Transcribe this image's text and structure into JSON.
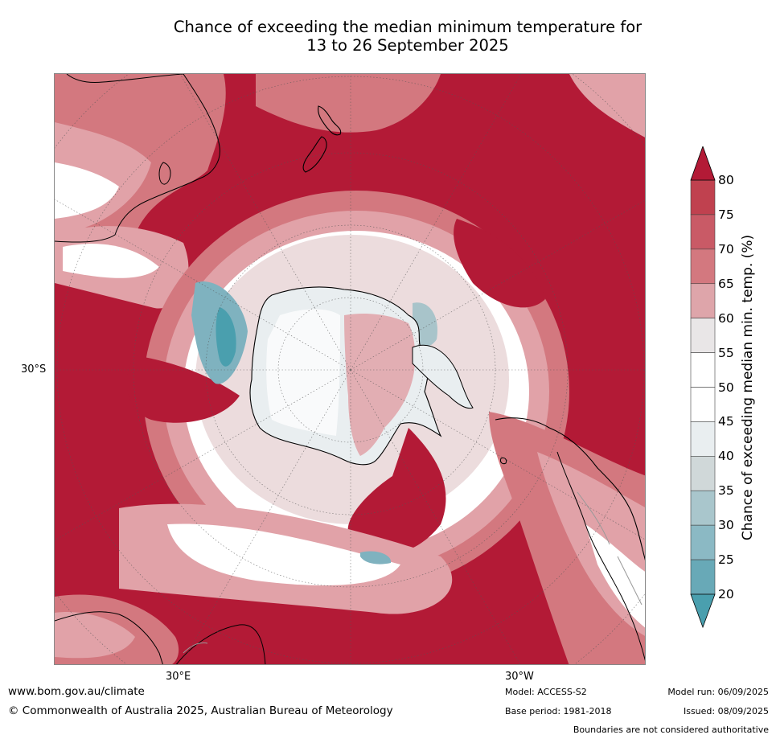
{
  "title_line1": "Chance of exceeding the median minimum temperature for",
  "title_line2": "13 to 26 September 2025",
  "map": {
    "lat_label": "30°S",
    "lon_label_east": "30°E",
    "lon_label_west": "30°W",
    "colors": {
      "very_high": "#b31a36",
      "high_75": "#c0414f",
      "high_70": "#d06873",
      "high_65": "#e1a2a8",
      "near_60": "#ecdcdd",
      "neutral": "#ffffff",
      "low_45": "#e9eef0",
      "low_40": "#d3dbdd",
      "low_30": "#a8c4ca",
      "low_25": "#7fb2bf",
      "very_low": "#4a9fae"
    }
  },
  "colorbar": {
    "ticks": [
      "80",
      "75",
      "70",
      "65",
      "60",
      "55",
      "50",
      "45",
      "40",
      "35",
      "30",
      "25",
      "20"
    ],
    "label": "Chance of exceeding median min. temp. (%)",
    "band_colors": [
      "#c0414f",
      "#c95a66",
      "#d3787f",
      "#dea5aa",
      "#e9e6e7",
      "#ffffff",
      "#ffffff",
      "#e9eef0",
      "#d0d8d9",
      "#a9c6cc",
      "#8bb9c4",
      "#68a9b7"
    ],
    "over_color": "#b31a36",
    "under_color": "#4a9fae"
  },
  "footer": {
    "url": "www.bom.gov.au/climate",
    "copyright": "© Commonwealth of Australia 2025, Australian Bureau of Meteorology",
    "model": "Model: ACCESS-S2",
    "base_period": "Base period: 1981-2018",
    "model_run": "Model run: 06/09/2025",
    "issued": "Issued: 08/09/2025",
    "disclaimer": "Boundaries are not considered authoritative"
  }
}
